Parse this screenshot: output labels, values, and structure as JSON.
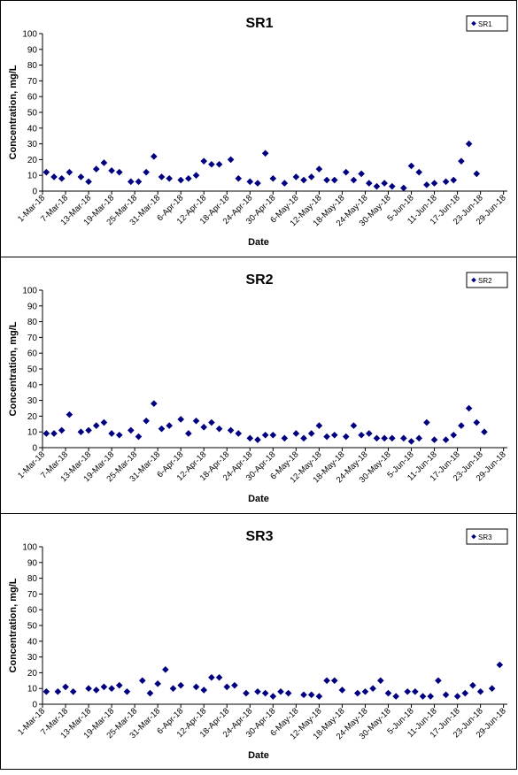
{
  "chart_data": [
    {
      "type": "scatter",
      "title": "SR1",
      "xlabel": "Date",
      "ylabel": "Concentration, mg/L",
      "ylim": [
        0,
        100
      ],
      "yticks": [
        0,
        10,
        20,
        30,
        40,
        50,
        60,
        70,
        80,
        90,
        100
      ],
      "xlim": [
        "1-Mar-18",
        "30-Jun-18"
      ],
      "xticks": [
        "1-Mar-18",
        "7-Mar-18",
        "13-Mar-18",
        "19-Mar-18",
        "25-Mar-18",
        "31-Mar-18",
        "6-Apr-18",
        "12-Apr-18",
        "18-Apr-18",
        "24-Apr-18",
        "30-Apr-18",
        "6-May-18",
        "12-May-18",
        "18-May-18",
        "24-May-18",
        "30-May-18",
        "5-Jun-18",
        "11-Jun-18",
        "17-Jun-18",
        "23-Jun-18",
        "29-Jun-18"
      ],
      "legend": "top-right",
      "grid": false,
      "color": "#000080",
      "series": [
        {
          "name": "SR1",
          "x": [
            "2-Mar-18",
            "4-Mar-18",
            "6-Mar-18",
            "8-Mar-18",
            "11-Mar-18",
            "13-Mar-18",
            "15-Mar-18",
            "17-Mar-18",
            "19-Mar-18",
            "21-Mar-18",
            "24-Mar-18",
            "26-Mar-18",
            "28-Mar-18",
            "30-Mar-18",
            "1-Apr-18",
            "3-Apr-18",
            "6-Apr-18",
            "8-Apr-18",
            "10-Apr-18",
            "12-Apr-18",
            "14-Apr-18",
            "16-Apr-18",
            "19-Apr-18",
            "21-Apr-18",
            "24-Apr-18",
            "26-Apr-18",
            "28-Apr-18",
            "30-Apr-18",
            "3-May-18",
            "6-May-18",
            "8-May-18",
            "10-May-18",
            "12-May-18",
            "14-May-18",
            "16-May-18",
            "19-May-18",
            "21-May-18",
            "23-May-18",
            "25-May-18",
            "27-May-18",
            "29-May-18",
            "31-May-18",
            "3-Jun-18",
            "5-Jun-18",
            "7-Jun-18",
            "9-Jun-18",
            "11-Jun-18",
            "14-Jun-18",
            "16-Jun-18",
            "18-Jun-18",
            "20-Jun-18",
            "22-Jun-18",
            "24-Jun-18",
            "27-Jun-18",
            "29-Jun-18"
          ],
          "y": [
            12,
            9,
            8,
            12,
            9,
            6,
            14,
            18,
            13,
            12,
            6,
            6,
            12,
            22,
            9,
            8,
            7,
            8,
            10,
            19,
            17,
            17,
            20,
            8,
            6,
            5,
            24,
            8,
            5,
            9,
            7,
            9,
            14,
            7,
            7,
            12,
            7,
            11,
            5,
            3,
            5,
            3,
            2,
            16,
            12,
            4,
            5,
            6,
            7,
            19,
            30,
            11,
            null,
            null,
            null
          ]
        }
      ]
    },
    {
      "type": "scatter",
      "title": "SR2",
      "xlabel": "Date",
      "ylabel": "Concentration, mg/L",
      "ylim": [
        0,
        100
      ],
      "yticks": [
        0,
        10,
        20,
        30,
        40,
        50,
        60,
        70,
        80,
        90,
        100
      ],
      "xlim": [
        "1-Mar-18",
        "30-Jun-18"
      ],
      "xticks": [
        "1-Mar-18",
        "7-Mar-18",
        "13-Mar-18",
        "19-Mar-18",
        "25-Mar-18",
        "31-Mar-18",
        "6-Apr-18",
        "12-Apr-18",
        "18-Apr-18",
        "24-Apr-18",
        "30-Apr-18",
        "6-May-18",
        "12-May-18",
        "18-May-18",
        "24-May-18",
        "30-May-18",
        "5-Jun-18",
        "11-Jun-18",
        "17-Jun-18",
        "23-Jun-18",
        "29-Jun-18"
      ],
      "legend": "top-right",
      "grid": false,
      "color": "#000080",
      "series": [
        {
          "name": "SR2",
          "x": [
            "2-Mar-18",
            "4-Mar-18",
            "6-Mar-18",
            "8-Mar-18",
            "11-Mar-18",
            "13-Mar-18",
            "15-Mar-18",
            "17-Mar-18",
            "19-Mar-18",
            "21-Mar-18",
            "24-Mar-18",
            "26-Mar-18",
            "28-Mar-18",
            "30-Mar-18",
            "1-Apr-18",
            "3-Apr-18",
            "6-Apr-18",
            "8-Apr-18",
            "10-Apr-18",
            "12-Apr-18",
            "14-Apr-18",
            "16-Apr-18",
            "19-Apr-18",
            "21-Apr-18",
            "24-Apr-18",
            "26-Apr-18",
            "28-Apr-18",
            "30-Apr-18",
            "3-May-18",
            "6-May-18",
            "8-May-18",
            "10-May-18",
            "12-May-18",
            "14-May-18",
            "16-May-18",
            "19-May-18",
            "21-May-18",
            "23-May-18",
            "25-May-18",
            "27-May-18",
            "29-May-18",
            "31-May-18",
            "3-Jun-18",
            "5-Jun-18",
            "7-Jun-18",
            "9-Jun-18",
            "11-Jun-18",
            "14-Jun-18",
            "16-Jun-18",
            "18-Jun-18",
            "20-Jun-18",
            "22-Jun-18",
            "24-Jun-18",
            "27-Jun-18",
            "29-Jun-18"
          ],
          "y": [
            9,
            9,
            11,
            21,
            10,
            11,
            14,
            16,
            9,
            8,
            11,
            7,
            17,
            28,
            12,
            14,
            18,
            9,
            17,
            13,
            16,
            12,
            11,
            9,
            6,
            5,
            8,
            8,
            6,
            9,
            6,
            9,
            14,
            7,
            8,
            7,
            14,
            8,
            9,
            6,
            6,
            6,
            6,
            4,
            6,
            16,
            5,
            5,
            8,
            14,
            25,
            16,
            10,
            null,
            null
          ]
        }
      ]
    },
    {
      "type": "scatter",
      "title": "SR3",
      "xlabel": "Date",
      "ylabel": "Concentration, mg/L",
      "ylim": [
        0,
        100
      ],
      "yticks": [
        0,
        10,
        20,
        30,
        40,
        50,
        60,
        70,
        80,
        90,
        100
      ],
      "xlim": [
        "1-Mar-18",
        "30-Jun-18"
      ],
      "xticks": [
        "1-Mar-18",
        "7-Mar-18",
        "13-Mar-18",
        "19-Mar-18",
        "25-Mar-18",
        "31-Mar-18",
        "6-Apr-18",
        "12-Apr-18",
        "18-Apr-18",
        "24-Apr-18",
        "30-Apr-18",
        "6-May-18",
        "12-May-18",
        "18-May-18",
        "24-May-18",
        "30-May-18",
        "5-Jun-18",
        "11-Jun-18",
        "17-Jun-18",
        "23-Jun-18",
        "29-Jun-18"
      ],
      "legend": "top-right",
      "grid": false,
      "color": "#000080",
      "series": [
        {
          "name": "SR3",
          "x": [
            "2-Mar-18",
            "5-Mar-18",
            "7-Mar-18",
            "9-Mar-18",
            "13-Mar-18",
            "15-Mar-18",
            "17-Mar-18",
            "19-Mar-18",
            "21-Mar-18",
            "23-Mar-18",
            "27-Mar-18",
            "29-Mar-18",
            "31-Mar-18",
            "2-Apr-18",
            "4-Apr-18",
            "6-Apr-18",
            "10-Apr-18",
            "12-Apr-18",
            "14-Apr-18",
            "16-Apr-18",
            "18-Apr-18",
            "20-Apr-18",
            "23-Apr-18",
            "26-Apr-18",
            "28-Apr-18",
            "30-Apr-18",
            "2-May-18",
            "4-May-18",
            "8-May-18",
            "10-May-18",
            "12-May-18",
            "14-May-18",
            "16-May-18",
            "18-May-18",
            "22-May-18",
            "24-May-18",
            "26-May-18",
            "28-May-18",
            "30-May-18",
            "1-Jun-18",
            "4-Jun-18",
            "6-Jun-18",
            "8-Jun-18",
            "10-Jun-18",
            "12-Jun-18",
            "14-Jun-18",
            "17-Jun-18",
            "19-Jun-18",
            "21-Jun-18",
            "23-Jun-18",
            "26-Jun-18",
            "28-Jun-18",
            "30-Jun-18"
          ],
          "y": [
            8,
            8,
            11,
            8,
            10,
            9,
            11,
            10,
            12,
            8,
            15,
            7,
            13,
            22,
            10,
            12,
            11,
            9,
            17,
            17,
            11,
            12,
            7,
            8,
            7,
            5,
            8,
            7,
            6,
            6,
            5,
            15,
            15,
            9,
            7,
            8,
            10,
            15,
            7,
            5,
            8,
            8,
            5,
            5,
            15,
            6,
            5,
            7,
            12,
            8,
            10,
            25,
            null
          ]
        }
      ]
    }
  ]
}
